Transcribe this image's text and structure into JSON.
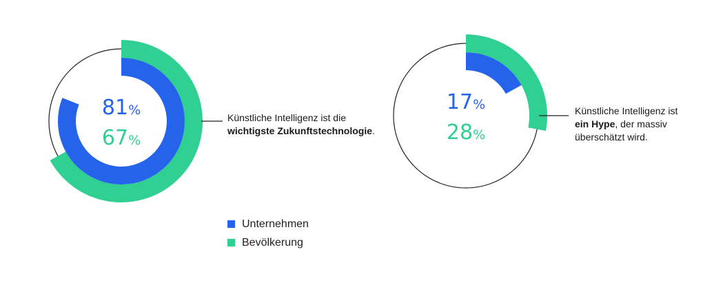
{
  "colors": {
    "unternehmen": "#2563eb",
    "bevoelkerung": "#2fd092",
    "outline": "#1f1f1f",
    "text": "#1a1a1a"
  },
  "chart_data": [
    {
      "type": "pie",
      "style": "concentric-donut",
      "series": [
        {
          "name": "Unternehmen",
          "value": 81
        },
        {
          "name": "Bevölkerung",
          "value": 67
        }
      ],
      "value_labels": [
        "81",
        "67"
      ],
      "unit": "%",
      "caption_plain": "Künstliche Intelligenz ist die",
      "caption_bold": "wichtigste Zukunftstechnologie",
      "caption_suffix": "."
    },
    {
      "type": "pie",
      "style": "concentric-donut",
      "series": [
        {
          "name": "Unternehmen",
          "value": 17
        },
        {
          "name": "Bevölkerung",
          "value": 28
        }
      ],
      "value_labels": [
        "17",
        "28"
      ],
      "unit": "%",
      "caption_plain": "Künstliche Intelligenz ist",
      "caption_bold": "ein Hype",
      "caption_suffix": ", der massiv überschätzt wird."
    }
  ],
  "legend": [
    {
      "label": "Unternehmen",
      "color": "#2563eb"
    },
    {
      "label": "Bevölkerung",
      "color": "#2fd092"
    }
  ]
}
